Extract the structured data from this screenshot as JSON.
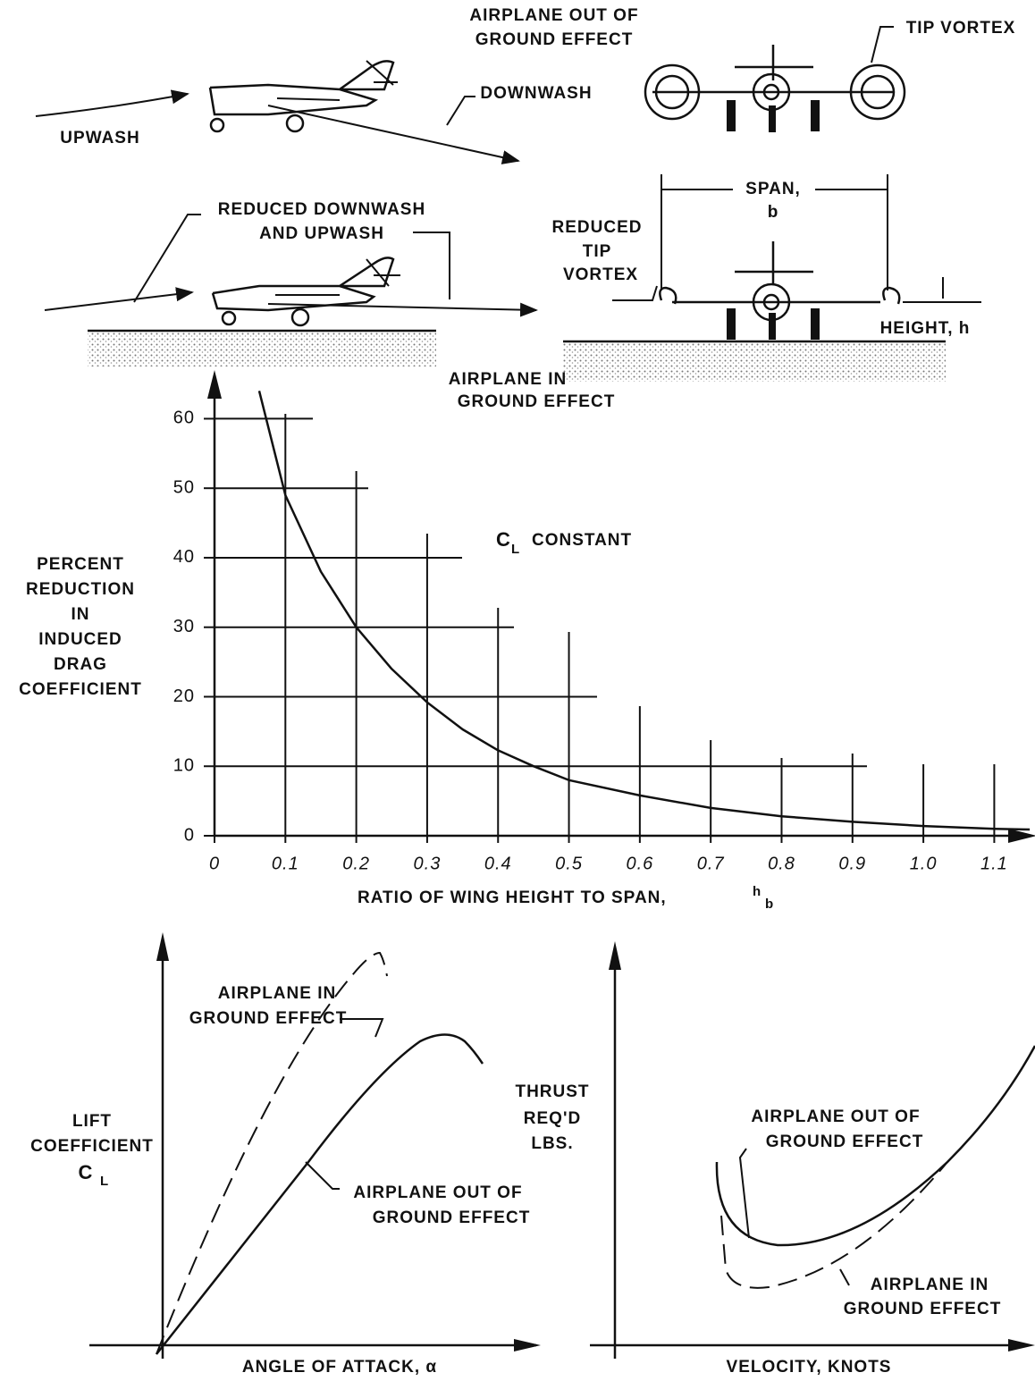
{
  "chart_data": {
    "type": "line",
    "x": [
      0.063,
      0.1,
      0.15,
      0.2,
      0.25,
      0.3,
      0.35,
      0.4,
      0.45,
      0.5,
      0.6,
      0.7,
      0.8,
      0.9,
      1.0,
      1.1,
      1.15
    ],
    "values": [
      64,
      49,
      38,
      30,
      24,
      19.2,
      15.3,
      12.3,
      10,
      8,
      5.8,
      4,
      2.8,
      2,
      1.4,
      1,
      0.9
    ],
    "color": "#111111",
    "xlim": [
      0,
      1.16
    ],
    "ylim": [
      0,
      67
    ],
    "xticks": [
      0,
      0.1,
      0.2,
      0.3,
      0.4,
      0.5,
      0.6,
      0.7,
      0.8,
      0.9,
      {
        "value": 1,
        "label": "1.0"
      },
      1.1
    ],
    "yticks": [
      0,
      10,
      20,
      30,
      40,
      50,
      60
    ],
    "grid": true,
    "y_label": [
      "PERCENT",
      "REDUCTION",
      "IN",
      "INDUCED",
      "DRAG",
      "COEFFICIENT"
    ],
    "x_label": {
      "text": "RATIO OF WING HEIGHT TO SPAN,",
      "num": "h",
      "den": "b"
    },
    "annotation": {
      "symbol": "C",
      "sub": "L",
      "text": "CONSTANT"
    }
  },
  "diagram": {
    "out_title": [
      "AIRPLANE OUT OF",
      "GROUND EFFECT"
    ],
    "tip_vortex": "TIP VORTEX",
    "downwash": "DOWNWASH",
    "upwash": "UPWASH",
    "reduced": [
      "REDUCED DOWNWASH",
      "AND UPWASH"
    ],
    "span": [
      "SPAN,",
      "b"
    ],
    "reduced_tip": [
      "REDUCED",
      "TIP",
      "VORTEX"
    ],
    "height": "HEIGHT, h",
    "in_title": [
      "AIRPLANE IN",
      "GROUND EFFECT"
    ]
  },
  "lift_chart": {
    "in_label": [
      "AIRPLANE IN",
      "GROUND EFFECT"
    ],
    "y_label": [
      "LIFT",
      "COEFFICIENT"
    ],
    "y_symbol": {
      "symbol": "C",
      "sub": "L"
    },
    "out_label": [
      "AIRPLANE OUT OF",
      "GROUND EFFECT"
    ],
    "x_label": "ANGLE OF ATTACK, α"
  },
  "thrust_chart": {
    "y_label": [
      "THRUST",
      "REQ'D",
      "LBS."
    ],
    "out_label": [
      "AIRPLANE OUT OF",
      "GROUND EFFECT"
    ],
    "in_label": [
      "AIRPLANE IN",
      "GROUND EFFECT"
    ],
    "x_label": "VELOCITY, KNOTS"
  }
}
